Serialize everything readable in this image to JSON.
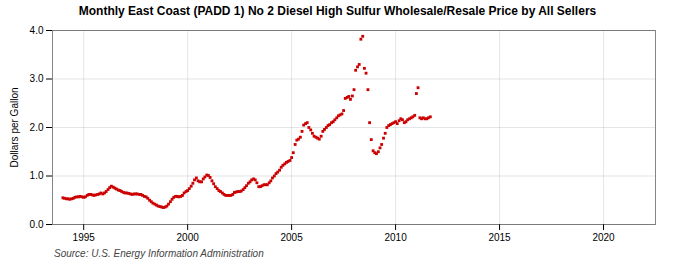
{
  "chart_data": {
    "type": "scatter",
    "title": "Monthly East Coast (PADD 1) No 2 Diesel High Sulfur Wholesale/Resale Price by All Sellers",
    "ylabel": "Dollars per Gallon",
    "source": "Source: U.S. Energy Information Administration",
    "color": "#cc0000",
    "marker": "square",
    "grid": true,
    "xlim": [
      1993.5,
      2022.5
    ],
    "ylim": [
      0.0,
      4.0
    ],
    "xticks": [
      1995,
      2000,
      2005,
      2010,
      2015,
      2020
    ],
    "yticks": [
      {
        "value": 0.0,
        "label": "0.0"
      },
      {
        "value": 1.0,
        "label": "1.0"
      },
      {
        "value": 2.0,
        "label": "2.0"
      },
      {
        "value": 3.0,
        "label": "3.0"
      },
      {
        "value": 4.0,
        "label": "4.0"
      }
    ],
    "x": [
      1994.0,
      1994.08,
      1994.17,
      1994.25,
      1994.33,
      1994.42,
      1994.5,
      1994.58,
      1994.67,
      1994.75,
      1994.83,
      1994.92,
      1995.0,
      1995.08,
      1995.17,
      1995.25,
      1995.33,
      1995.42,
      1995.5,
      1995.58,
      1995.67,
      1995.75,
      1995.83,
      1995.92,
      1996.0,
      1996.08,
      1996.17,
      1996.25,
      1996.33,
      1996.42,
      1996.5,
      1996.58,
      1996.67,
      1996.75,
      1996.83,
      1996.92,
      1997.0,
      1997.08,
      1997.17,
      1997.25,
      1997.33,
      1997.42,
      1997.5,
      1997.58,
      1997.67,
      1997.75,
      1997.83,
      1997.92,
      1998.0,
      1998.08,
      1998.17,
      1998.25,
      1998.33,
      1998.42,
      1998.5,
      1998.58,
      1998.67,
      1998.75,
      1998.83,
      1998.92,
      1999.0,
      1999.08,
      1999.17,
      1999.25,
      1999.33,
      1999.42,
      1999.5,
      1999.58,
      1999.67,
      1999.75,
      1999.83,
      1999.92,
      2000.0,
      2000.08,
      2000.17,
      2000.25,
      2000.33,
      2000.42,
      2000.5,
      2000.58,
      2000.67,
      2000.75,
      2000.83,
      2000.92,
      2001.0,
      2001.08,
      2001.17,
      2001.25,
      2001.33,
      2001.42,
      2001.5,
      2001.58,
      2001.67,
      2001.75,
      2001.83,
      2001.92,
      2002.0,
      2002.08,
      2002.17,
      2002.25,
      2002.33,
      2002.42,
      2002.5,
      2002.58,
      2002.67,
      2002.75,
      2002.83,
      2002.92,
      2003.0,
      2003.08,
      2003.17,
      2003.25,
      2003.33,
      2003.42,
      2003.5,
      2003.58,
      2003.67,
      2003.75,
      2003.83,
      2003.92,
      2004.0,
      2004.08,
      2004.17,
      2004.25,
      2004.33,
      2004.42,
      2004.5,
      2004.58,
      2004.67,
      2004.75,
      2004.83,
      2004.92,
      2005.0,
      2005.08,
      2005.17,
      2005.25,
      2005.33,
      2005.42,
      2005.5,
      2005.58,
      2005.67,
      2005.75,
      2005.83,
      2005.92,
      2006.0,
      2006.08,
      2006.17,
      2006.25,
      2006.33,
      2006.42,
      2006.5,
      2006.58,
      2006.67,
      2006.75,
      2006.83,
      2006.92,
      2007.0,
      2007.08,
      2007.17,
      2007.25,
      2007.33,
      2007.42,
      2007.5,
      2007.58,
      2007.67,
      2007.75,
      2007.83,
      2007.92,
      2008.0,
      2008.08,
      2008.17,
      2008.25,
      2008.33,
      2008.42,
      2008.5,
      2008.58,
      2008.67,
      2008.75,
      2008.83,
      2008.92,
      2009.0,
      2009.08,
      2009.17,
      2009.25,
      2009.33,
      2009.42,
      2009.5,
      2009.58,
      2009.67,
      2009.75,
      2009.83,
      2009.92,
      2010.0,
      2010.08,
      2010.17,
      2010.25,
      2010.33,
      2010.42,
      2010.5,
      2010.58,
      2010.67,
      2010.75,
      2010.83,
      2010.92,
      2011.0,
      2011.08,
      2011.17,
      2011.25,
      2011.33,
      2011.42,
      2011.5,
      2011.58,
      2011.67
    ],
    "values": [
      0.55,
      0.54,
      0.53,
      0.53,
      0.52,
      0.53,
      0.54,
      0.56,
      0.57,
      0.57,
      0.58,
      0.57,
      0.56,
      0.57,
      0.6,
      0.62,
      0.62,
      0.61,
      0.6,
      0.61,
      0.62,
      0.63,
      0.65,
      0.63,
      0.65,
      0.68,
      0.72,
      0.76,
      0.79,
      0.77,
      0.75,
      0.73,
      0.71,
      0.7,
      0.68,
      0.66,
      0.65,
      0.65,
      0.64,
      0.63,
      0.62,
      0.63,
      0.63,
      0.63,
      0.62,
      0.62,
      0.6,
      0.58,
      0.57,
      0.54,
      0.5,
      0.47,
      0.44,
      0.42,
      0.4,
      0.38,
      0.37,
      0.36,
      0.35,
      0.36,
      0.38,
      0.42,
      0.47,
      0.52,
      0.56,
      0.58,
      0.58,
      0.57,
      0.58,
      0.6,
      0.65,
      0.68,
      0.7,
      0.74,
      0.79,
      0.85,
      0.92,
      0.96,
      0.9,
      0.88,
      0.88,
      0.94,
      0.98,
      1.02,
      1.01,
      0.97,
      0.9,
      0.84,
      0.78,
      0.74,
      0.7,
      0.68,
      0.65,
      0.62,
      0.6,
      0.6,
      0.6,
      0.6,
      0.62,
      0.66,
      0.67,
      0.68,
      0.68,
      0.69,
      0.72,
      0.76,
      0.8,
      0.85,
      0.88,
      0.92,
      0.94,
      0.92,
      0.86,
      0.78,
      0.78,
      0.8,
      0.82,
      0.82,
      0.82,
      0.86,
      0.9,
      0.96,
      1.0,
      1.05,
      1.08,
      1.12,
      1.18,
      1.22,
      1.25,
      1.28,
      1.3,
      1.32,
      1.38,
      1.48,
      1.65,
      1.74,
      1.76,
      1.8,
      1.92,
      2.05,
      2.08,
      2.1,
      2.0,
      1.95,
      1.88,
      1.82,
      1.8,
      1.78,
      1.76,
      1.82,
      1.92,
      1.96,
      2.0,
      2.04,
      2.06,
      2.1,
      2.12,
      2.16,
      2.2,
      2.24,
      2.26,
      2.28,
      2.35,
      2.6,
      2.62,
      2.64,
      2.58,
      2.65,
      2.78,
      3.18,
      3.25,
      3.3,
      3.82,
      3.88,
      3.22,
      3.12,
      2.78,
      2.1,
      1.75,
      1.52,
      1.48,
      1.46,
      1.5,
      1.58,
      1.65,
      1.78,
      1.88,
      2.0,
      2.04,
      2.06,
      2.08,
      2.1,
      2.12,
      2.08,
      2.14,
      2.18,
      2.16,
      2.1,
      2.12,
      2.16,
      2.18,
      2.2,
      2.22,
      2.25,
      2.7,
      2.82,
      2.2,
      2.18,
      2.2,
      2.18,
      2.18,
      2.2,
      2.22
    ]
  }
}
